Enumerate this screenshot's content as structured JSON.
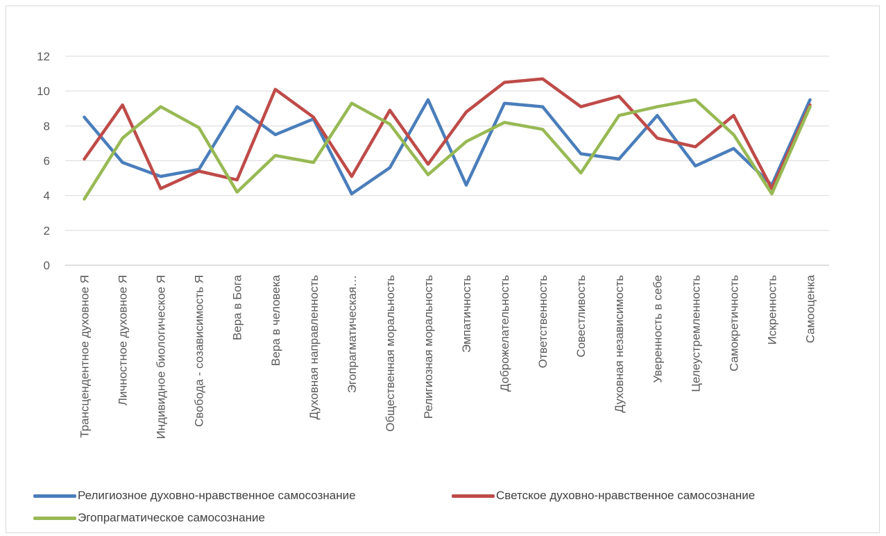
{
  "chart_data": {
    "type": "line",
    "title": "",
    "xlabel": "",
    "ylabel": "",
    "ylim": [
      0,
      12
    ],
    "yticks": [
      0,
      2,
      4,
      6,
      8,
      10,
      12
    ],
    "grid": true,
    "legend_position": "bottom",
    "categories": [
      "Трансцендентное духовное Я",
      "Личностное духовное Я",
      "Индивидное биологическое Я",
      "Свобода - созависимость Я",
      "Вера в Бога",
      "Вера в человека",
      "Духовная направленность",
      "Эгопрагматическая…",
      "Общественная моральность",
      "Религиозная моральность",
      "Эмпатичность",
      "Доброжелательность",
      "Ответственность",
      "Совестливость",
      "Духовная независимость",
      "Уверенность в себе",
      "Целеустремленность",
      "Самокретичность",
      "Искренность",
      "Самооценка"
    ],
    "series": [
      {
        "name": "Религиозное духовно-нравственное самосознание",
        "color": "#4a7ebb",
        "values": [
          8.5,
          5.9,
          5.1,
          5.5,
          9.1,
          7.5,
          8.4,
          4.1,
          5.6,
          9.5,
          4.6,
          9.3,
          9.1,
          6.4,
          6.1,
          8.6,
          5.7,
          6.7,
          4.6,
          9.5
        ]
      },
      {
        "name": "Светское духовно-нравственное самосознание",
        "color": "#be4b48",
        "values": [
          6.1,
          9.2,
          4.4,
          5.4,
          4.9,
          10.1,
          8.5,
          5.1,
          8.9,
          5.8,
          8.8,
          10.5,
          10.7,
          9.1,
          9.7,
          7.3,
          6.8,
          8.6,
          4.4,
          9.2
        ]
      },
      {
        "name": "Эгопрагматическое самосознание",
        "color": "#98b954",
        "values": [
          3.8,
          7.3,
          9.1,
          7.9,
          4.2,
          6.3,
          5.9,
          9.3,
          8.1,
          5.2,
          7.1,
          8.2,
          7.8,
          5.3,
          8.6,
          9.1,
          9.5,
          7.5,
          4.1,
          9.1
        ]
      }
    ]
  }
}
